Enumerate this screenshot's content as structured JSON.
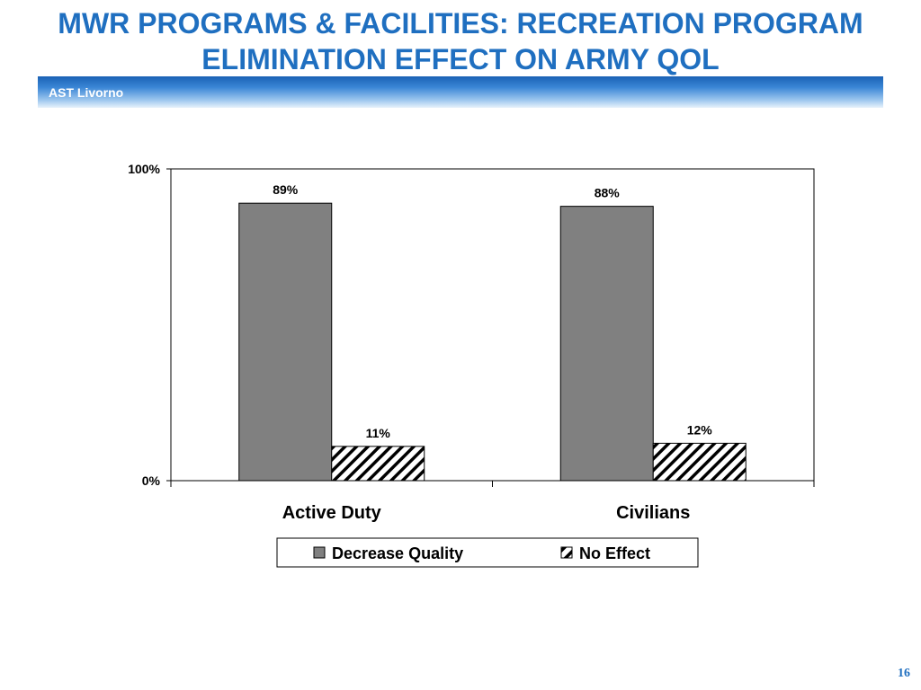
{
  "header": {
    "title_line1": "MWR PROGRAMS & FACILITIES: RECREATION PROGRAM",
    "title_line2": "ELIMINATION EFFECT ON ARMY QOL",
    "subtitle": "AST Livorno"
  },
  "footer": {
    "page_number": "16"
  },
  "colors": {
    "title": "#1f6fc0",
    "decrease_fill": "#808080",
    "no_effect_pattern": "diagonal-hatch-black-on-white"
  },
  "chart_data": {
    "type": "bar",
    "categories": [
      "Active Duty",
      "Civilians"
    ],
    "series": [
      {
        "name": "Decrease Quality",
        "values": [
          89,
          88
        ],
        "labels": [
          "89%",
          "88%"
        ]
      },
      {
        "name": "No Effect",
        "values": [
          11,
          12
        ],
        "labels": [
          "11%",
          "12%"
        ]
      }
    ],
    "ylim": [
      0,
      100
    ],
    "ytick_labels": [
      "0%",
      "100%"
    ],
    "xlabel": "",
    "ylabel": "",
    "grid": false,
    "legend": "bottom"
  }
}
